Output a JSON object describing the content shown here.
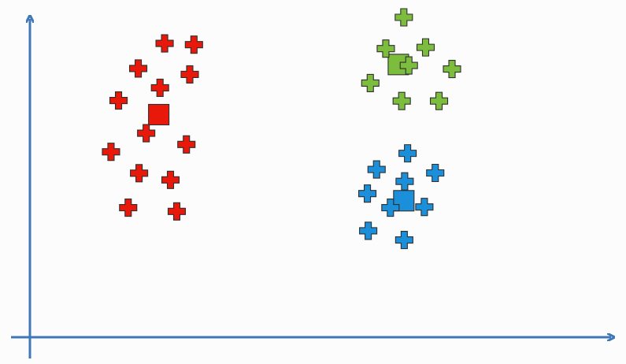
{
  "chart_data": {
    "type": "scatter",
    "title": "",
    "xlabel": "",
    "ylabel": "",
    "xlim": [
      0,
      100
    ],
    "ylim": [
      0,
      100
    ],
    "grid": false,
    "legend": "none",
    "series": [
      {
        "color": "#e8190b",
        "marker": "plus",
        "points": [
          [
            20.5,
            89.5
          ],
          [
            27.5,
            89.0
          ],
          [
            14.2,
            79.4
          ],
          [
            26.5,
            77.0
          ],
          [
            19.4,
            71.6
          ],
          [
            9.5,
            66.5
          ],
          [
            16.1,
            53.3
          ],
          [
            25.7,
            48.8
          ],
          [
            7.7,
            45.8
          ],
          [
            14.4,
            37.2
          ],
          [
            21.9,
            34.5
          ],
          [
            11.8,
            23.3
          ],
          [
            23.4,
            21.8
          ]
        ],
        "centroid": [
          19.1,
          60.8
        ]
      },
      {
        "color": "#7cbd3e",
        "marker": "plus",
        "points": [
          [
            77.6,
            100.0
          ],
          [
            73.3,
            87.4
          ],
          [
            82.8,
            87.9
          ],
          [
            78.8,
            80.6
          ],
          [
            89.1,
            79.2
          ],
          [
            69.6,
            73.5
          ],
          [
            77.1,
            66.3
          ],
          [
            86.0,
            66.3
          ]
        ],
        "centroid": [
          76.3,
          81.0
        ]
      },
      {
        "color": "#1b8fd9",
        "marker": "plus",
        "points": [
          [
            78.5,
            45.2
          ],
          [
            71.1,
            38.7
          ],
          [
            85.1,
            37.3
          ],
          [
            77.8,
            33.9
          ],
          [
            68.9,
            29.0
          ],
          [
            74.4,
            23.3
          ],
          [
            82.5,
            23.6
          ],
          [
            69.1,
            14.0
          ],
          [
            77.7,
            10.3
          ]
        ],
        "centroid": [
          77.6,
          26.1
        ]
      }
    ]
  }
}
